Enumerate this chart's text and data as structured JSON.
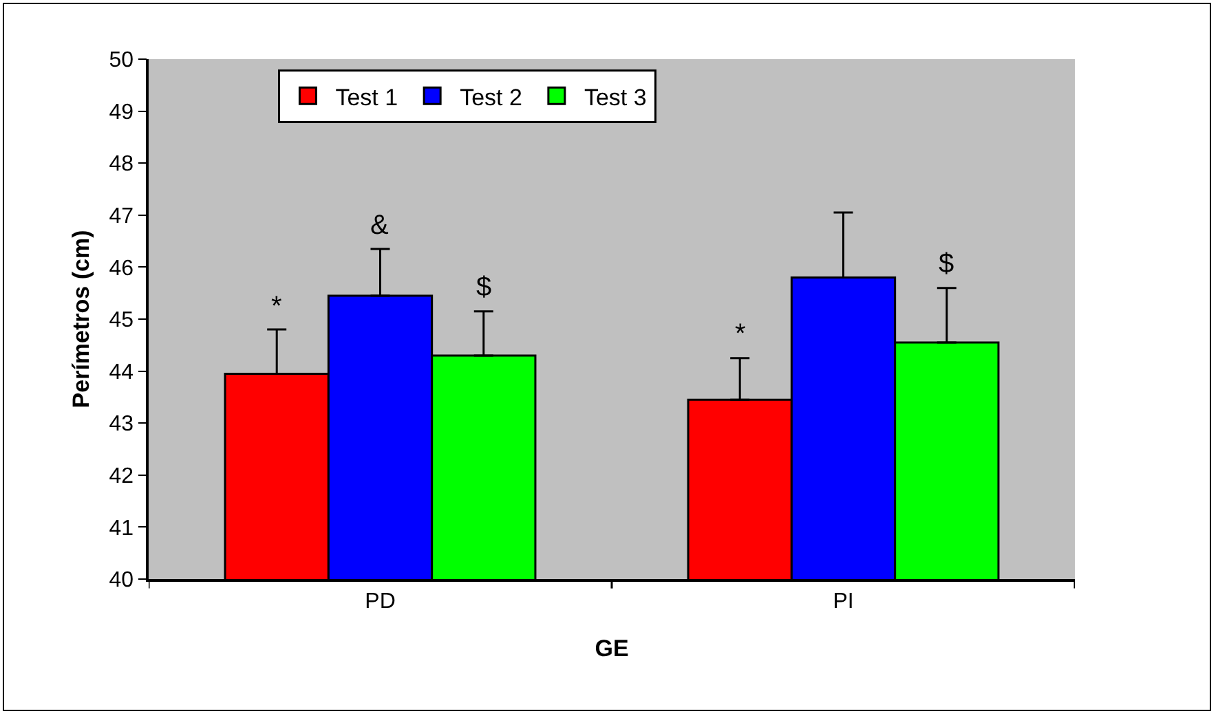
{
  "chart_data": {
    "type": "bar",
    "xlabel": "GE",
    "ylabel": "Perímetros (cm)",
    "categories": [
      "PD",
      "PI"
    ],
    "series": [
      {
        "name": "Test 1",
        "color": "#ff0000",
        "values": [
          43.95,
          43.45
        ],
        "errors": [
          [
            43.95,
            44.8
          ],
          [
            43.45,
            44.25
          ]
        ]
      },
      {
        "name": "Test 2",
        "color": "#0000ff",
        "values": [
          45.45,
          45.8
        ],
        "errors": [
          [
            45.45,
            46.35
          ],
          [
            45.8,
            47.05
          ]
        ]
      },
      {
        "name": "Test 3",
        "color": "#00ff00",
        "values": [
          44.3,
          44.55
        ],
        "errors": [
          [
            44.3,
            45.15
          ],
          [
            44.55,
            45.6
          ]
        ]
      }
    ],
    "ylim": [
      40,
      50
    ],
    "yticks": [
      40,
      41,
      42,
      43,
      44,
      45,
      46,
      47,
      48,
      49,
      50
    ],
    "grid": false,
    "legend": "top left",
    "annotations": [
      "*",
      "&",
      "$",
      "*",
      "$"
    ]
  }
}
